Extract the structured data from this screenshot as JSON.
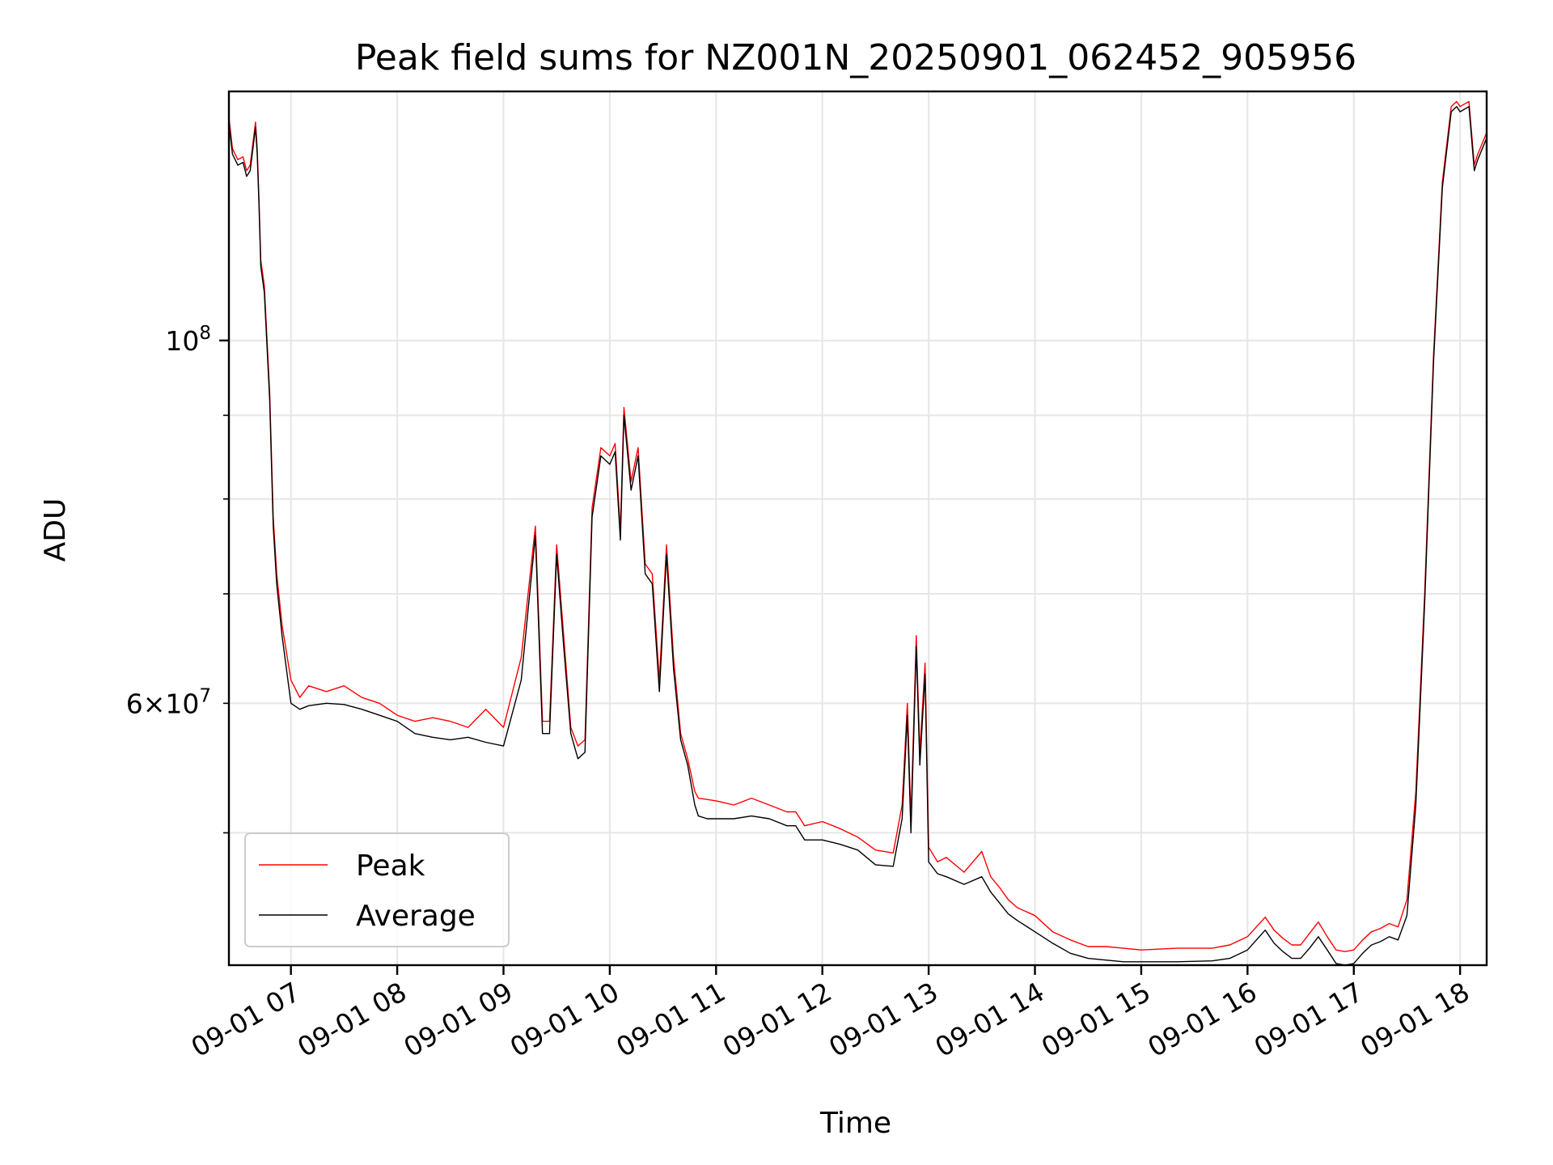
{
  "chart_data": {
    "type": "line",
    "title": "Peak field sums for NZ001N_20250901_062452_905956",
    "xlabel": "Time",
    "ylabel": "ADU",
    "x_tick_labels": [
      "09-01 07",
      "09-01 08",
      "09-01 09",
      "09-01 10",
      "09-01 11",
      "09-01 12",
      "09-01 13",
      "09-01 14",
      "09-01 15",
      "09-01 16",
      "09-01 17",
      "09-01 18"
    ],
    "x_ticks": [
      "2025-09-01 07:00",
      "2025-09-01 08:00",
      "2025-09-01 09:00",
      "2025-09-01 10:00",
      "2025-09-01 11:00",
      "2025-09-01 12:00",
      "2025-09-01 13:00",
      "2025-09-01 14:00",
      "2025-09-01 15:00",
      "2025-09-01 16:00",
      "2025-09-01 17:00",
      "2025-09-01 18:00"
    ],
    "xlim": [
      "2025-09-01 06:25",
      "2025-09-01 18:15"
    ],
    "y_scale": "log",
    "ylim": [
      41500000,
      142000000
    ],
    "y_major_ticks": [
      100000000
    ],
    "y_major_tick_labels": [
      "10^8"
    ],
    "y_minor_ticks": [
      50000000,
      60000000,
      70000000,
      80000000,
      90000000
    ],
    "y_minor_tick_labels": [
      "",
      "6×10^7",
      "",
      "",
      ""
    ],
    "grid": true,
    "legend": "lower-left",
    "series": [
      {
        "name": "Peak",
        "color": "#ff0000",
        "x": [
          "06:25",
          "06:27",
          "06:30",
          "06:33",
          "06:35",
          "06:37",
          "06:40",
          "06:41",
          "06:42",
          "06:43",
          "06:45",
          "06:48",
          "06:50",
          "06:52",
          "06:55",
          "07:00",
          "07:05",
          "07:10",
          "07:20",
          "07:30",
          "07:40",
          "07:50",
          "08:00",
          "08:10",
          "08:20",
          "08:30",
          "08:40",
          "08:50",
          "09:00",
          "09:10",
          "09:18",
          "09:22",
          "09:26",
          "09:30",
          "09:34",
          "09:38",
          "09:42",
          "09:46",
          "09:50",
          "09:55",
          "10:00",
          "10:03",
          "10:06",
          "10:08",
          "10:12",
          "10:16",
          "10:20",
          "10:24",
          "10:28",
          "10:32",
          "10:36",
          "10:40",
          "10:44",
          "10:48",
          "10:50",
          "10:55",
          "11:00",
          "11:10",
          "11:20",
          "11:30",
          "11:40",
          "11:45",
          "11:50",
          "12:00",
          "12:10",
          "12:20",
          "12:30",
          "12:40",
          "12:45",
          "12:48",
          "12:50",
          "12:53",
          "12:55",
          "12:58",
          "13:00",
          "13:05",
          "13:10",
          "13:20",
          "13:30",
          "13:35",
          "13:40",
          "13:45",
          "13:50",
          "14:00",
          "14:10",
          "14:20",
          "14:30",
          "14:40",
          "14:50",
          "15:00",
          "15:20",
          "15:40",
          "15:50",
          "16:00",
          "16:10",
          "16:15",
          "16:20",
          "16:25",
          "16:30",
          "16:35",
          "16:40",
          "16:45",
          "16:50",
          "16:55",
          "17:00",
          "17:05",
          "17:10",
          "17:15",
          "17:20",
          "17:25",
          "17:30",
          "17:35",
          "17:40",
          "17:45",
          "17:50",
          "17:55",
          "17:58",
          "18:00",
          "18:05",
          "18:08",
          "18:10",
          "18:15"
        ],
        "values": [
          137000000,
          131000000,
          129000000,
          129500000,
          127000000,
          128000000,
          136000000,
          131000000,
          122000000,
          112000000,
          108000000,
          93000000,
          78000000,
          72000000,
          67000000,
          62000000,
          60500000,
          61500000,
          61000000,
          61500000,
          60500000,
          60000000,
          59000000,
          58500000,
          58800000,
          58500000,
          58000000,
          59500000,
          58000000,
          64000000,
          77000000,
          58500000,
          58500000,
          75000000,
          66000000,
          58000000,
          56500000,
          57000000,
          79000000,
          86000000,
          85000000,
          86500000,
          76500000,
          91000000,
          82000000,
          86000000,
          73000000,
          72000000,
          62000000,
          75000000,
          64000000,
          57500000,
          55500000,
          53000000,
          52500000,
          52400000,
          52300000,
          52000000,
          52500000,
          52000000,
          51500000,
          51500000,
          50500000,
          50800000,
          50300000,
          49700000,
          48800000,
          48600000,
          52000000,
          60000000,
          51000000,
          66000000,
          56000000,
          63500000,
          49000000,
          48000000,
          48300000,
          47300000,
          48700000,
          47000000,
          46300000,
          45500000,
          45000000,
          44500000,
          43500000,
          43000000,
          42600000,
          42600000,
          42500000,
          42400000,
          42500000,
          42500000,
          42700000,
          43200000,
          44400000,
          43600000,
          43100000,
          42700000,
          42700000,
          43400000,
          44100000,
          43200000,
          42400000,
          42300000,
          42400000,
          43000000,
          43500000,
          43700000,
          44000000,
          43800000,
          45500000,
          53000000,
          70000000,
          98000000,
          125000000,
          139000000,
          140000000,
          139000000,
          140000000,
          128000000,
          130000000,
          134000000
        ]
      },
      {
        "name": "Average",
        "color": "#000000",
        "x": [
          "06:25",
          "06:27",
          "06:30",
          "06:33",
          "06:35",
          "06:37",
          "06:40",
          "06:41",
          "06:42",
          "06:43",
          "06:45",
          "06:48",
          "06:50",
          "06:52",
          "06:55",
          "07:00",
          "07:05",
          "07:10",
          "07:20",
          "07:30",
          "07:40",
          "07:50",
          "08:00",
          "08:10",
          "08:20",
          "08:30",
          "08:40",
          "08:50",
          "09:00",
          "09:10",
          "09:18",
          "09:22",
          "09:26",
          "09:30",
          "09:34",
          "09:38",
          "09:42",
          "09:46",
          "09:50",
          "09:55",
          "10:00",
          "10:03",
          "10:06",
          "10:08",
          "10:12",
          "10:16",
          "10:20",
          "10:24",
          "10:28",
          "10:32",
          "10:36",
          "10:40",
          "10:44",
          "10:48",
          "10:50",
          "10:55",
          "11:00",
          "11:10",
          "11:20",
          "11:30",
          "11:40",
          "11:45",
          "11:50",
          "12:00",
          "12:10",
          "12:20",
          "12:30",
          "12:40",
          "12:45",
          "12:48",
          "12:50",
          "12:53",
          "12:55",
          "12:58",
          "13:00",
          "13:05",
          "13:10",
          "13:20",
          "13:30",
          "13:35",
          "13:40",
          "13:45",
          "13:50",
          "14:00",
          "14:10",
          "14:20",
          "14:30",
          "14:40",
          "14:50",
          "15:00",
          "15:20",
          "15:40",
          "15:50",
          "16:00",
          "16:10",
          "16:15",
          "16:20",
          "16:25",
          "16:30",
          "16:35",
          "16:40",
          "16:45",
          "16:50",
          "16:55",
          "17:00",
          "17:05",
          "17:10",
          "17:15",
          "17:20",
          "17:25",
          "17:30",
          "17:35",
          "17:40",
          "17:45",
          "17:50",
          "17:55",
          "17:58",
          "18:00",
          "18:05",
          "18:08",
          "18:10",
          "18:15"
        ],
        "values": [
          136000000,
          130000000,
          128000000,
          128500000,
          126000000,
          127000000,
          135000000,
          130000000,
          121000000,
          111000000,
          107000000,
          92000000,
          77000000,
          71000000,
          66000000,
          60000000,
          59500000,
          59800000,
          60000000,
          59900000,
          59500000,
          59000000,
          58500000,
          57500000,
          57200000,
          57000000,
          57200000,
          56800000,
          56500000,
          62000000,
          76000000,
          57500000,
          57500000,
          74000000,
          65000000,
          57500000,
          55500000,
          56000000,
          78000000,
          85000000,
          84000000,
          85500000,
          75500000,
          90000000,
          81000000,
          85000000,
          72000000,
          71000000,
          61000000,
          74000000,
          63000000,
          57000000,
          55000000,
          52000000,
          51200000,
          51000000,
          51000000,
          51000000,
          51200000,
          51000000,
          50500000,
          50500000,
          49500000,
          49500000,
          49200000,
          48800000,
          47800000,
          47700000,
          51000000,
          59000000,
          50000000,
          65000000,
          55000000,
          62500000,
          48000000,
          47200000,
          47000000,
          46500000,
          47000000,
          46000000,
          45300000,
          44600000,
          44200000,
          43500000,
          42800000,
          42200000,
          41900000,
          41800000,
          41700000,
          41700000,
          41700000,
          41750000,
          41900000,
          42400000,
          43600000,
          42800000,
          42300000,
          41900000,
          41900000,
          42500000,
          43200000,
          42400000,
          41600000,
          41500000,
          41600000,
          42200000,
          42700000,
          42900000,
          43200000,
          43000000,
          44500000,
          52000000,
          69000000,
          97000000,
          124000000,
          138000000,
          139000000,
          138000000,
          139000000,
          127000000,
          129000000,
          133000000
        ]
      }
    ]
  }
}
